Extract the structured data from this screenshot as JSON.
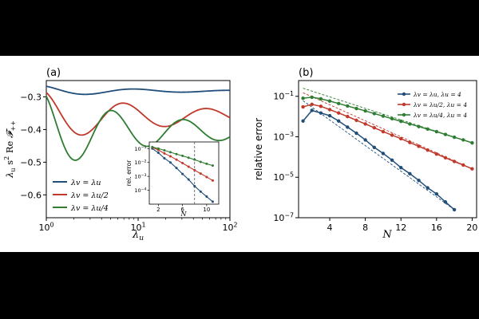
{
  "colors": {
    "blue": "#1f4e79",
    "red": "#c0392b",
    "green": "#2e7d32",
    "frame": "#000000",
    "background": "#ffffff",
    "band": "#000000"
  },
  "chart_data": [
    {
      "type": "line",
      "panel_label": "(a)",
      "xlabel": "λu",
      "ylabel": "λu s² Re 𝓕++",
      "xscale": "log",
      "xlim": [
        1,
        100
      ],
      "ylim": [
        -0.67,
        -0.25
      ],
      "xticks": [
        "10^0",
        "10^1",
        "10^2"
      ],
      "yticks": [
        "-0.6",
        "-0.5",
        "-0.4",
        "-0.3"
      ],
      "legend_position": "lower-left",
      "series": [
        {
          "name": "λv = λu",
          "color": "blue",
          "curve": {
            "base": -0.282,
            "amp": 0.016,
            "decay": 1.0,
            "period": 1.05,
            "phase": 0.45,
            "floor": 0.0
          }
        },
        {
          "name": "λv = λu/2",
          "color": "red",
          "curve": {
            "base": -0.36,
            "amp": 0.065,
            "decay": 1.0,
            "period": 0.9,
            "phase": 0.4,
            "floor": 0.2
          }
        },
        {
          "name": "λv = λu/4",
          "color": "green",
          "curve": {
            "base": -0.405,
            "amp": 0.105,
            "decay": 0.9,
            "period": 0.78,
            "phase": 0.33,
            "floor": 0.15
          }
        }
      ],
      "inset": {
        "type": "line",
        "ylabel": "rel. error",
        "xlabel": "N",
        "yscale": "log",
        "xlim": [
          0.5,
          12
        ],
        "ylim": [
          1e-05,
          0.3
        ],
        "xticks": [
          "2",
          "6",
          "10"
        ],
        "yticks": [
          "10^-1",
          "10^-2",
          "10^-3",
          "10^-4"
        ],
        "vline_x": 8,
        "series": [
          {
            "color": "blue",
            "x": [
              1,
              2,
              3,
              4,
              5,
              6,
              7,
              8,
              9,
              10,
              11
            ],
            "y": [
              0.1,
              0.05,
              0.02,
              0.01,
              0.004,
              0.0015,
              0.0006,
              0.0002,
              8e-05,
              3.5e-05,
              1.5e-05
            ]
          },
          {
            "color": "red",
            "x": [
              1,
              2,
              3,
              4,
              5,
              6,
              7,
              8,
              9,
              10,
              11
            ],
            "y": [
              0.12,
              0.08,
              0.045,
              0.028,
              0.016,
              0.009,
              0.005,
              0.0028,
              0.0016,
              0.0009,
              0.0005
            ]
          },
          {
            "color": "green",
            "x": [
              1,
              2,
              3,
              4,
              5,
              6,
              7,
              8,
              9,
              10,
              11
            ],
            "y": [
              0.13,
              0.1,
              0.075,
              0.055,
              0.04,
              0.03,
              0.022,
              0.016,
              0.011,
              0.008,
              0.006
            ]
          }
        ]
      }
    },
    {
      "type": "line",
      "panel_label": "(b)",
      "xlabel": "N",
      "ylabel": "relative error",
      "yscale": "log",
      "xlim": [
        0.5,
        20.5
      ],
      "ylim": [
        1e-07,
        0.6
      ],
      "xticks": [
        "4",
        "8",
        "12",
        "16",
        "20"
      ],
      "yticks": [
        "10^-1",
        "10^-3",
        "10^-5",
        "10^-7"
      ],
      "legend_position": "top-right",
      "series": [
        {
          "name": "λv = λu, λu = 4",
          "color": "blue",
          "x": [
            1,
            2,
            3,
            4,
            5,
            6,
            7,
            8,
            9,
            10,
            11,
            12,
            13,
            14,
            15,
            16,
            17,
            18
          ],
          "y": [
            0.006,
            0.02,
            0.015,
            0.011,
            0.006,
            0.003,
            0.0015,
            0.0007,
            0.0003,
            0.00015,
            7e-05,
            3e-05,
            1.5e-05,
            7e-06,
            3e-06,
            1.5e-06,
            6e-07,
            2.5e-07
          ]
        },
        {
          "name": "λv = λu/2, λu = 4",
          "color": "red",
          "x": [
            1,
            2,
            3,
            4,
            5,
            6,
            7,
            8,
            9,
            10,
            11,
            12,
            13,
            14,
            15,
            16,
            17,
            18,
            19,
            20
          ],
          "y": [
            0.03,
            0.04,
            0.032,
            0.022,
            0.015,
            0.01,
            0.0065,
            0.0043,
            0.0028,
            0.0018,
            0.0012,
            0.0008,
            0.00052,
            0.00034,
            0.00022,
            0.00014,
            9.2e-05,
            6e-05,
            4e-05,
            2.6e-05
          ]
        },
        {
          "name": "λv = λu/4, λu = 4",
          "color": "green",
          "x": [
            1,
            2,
            3,
            4,
            5,
            6,
            7,
            8,
            9,
            10,
            11,
            12,
            13,
            14,
            15,
            16,
            17,
            18,
            19,
            20
          ],
          "y": [
            0.08,
            0.09,
            0.075,
            0.058,
            0.044,
            0.033,
            0.025,
            0.019,
            0.014,
            0.0105,
            0.0078,
            0.0058,
            0.0043,
            0.0032,
            0.0024,
            0.0018,
            0.0013,
            0.00095,
            0.0007,
            0.0005
          ]
        }
      ],
      "fit_lines": [
        {
          "color": "blue",
          "x": [
            1,
            18
          ],
          "y": [
            0.06,
            2.5e-07
          ]
        },
        {
          "color": "red",
          "x": [
            1,
            20
          ],
          "y": [
            0.15,
            2.6e-05
          ]
        },
        {
          "color": "green",
          "x": [
            1,
            20
          ],
          "y": [
            0.25,
            0.0005
          ]
        }
      ]
    }
  ]
}
